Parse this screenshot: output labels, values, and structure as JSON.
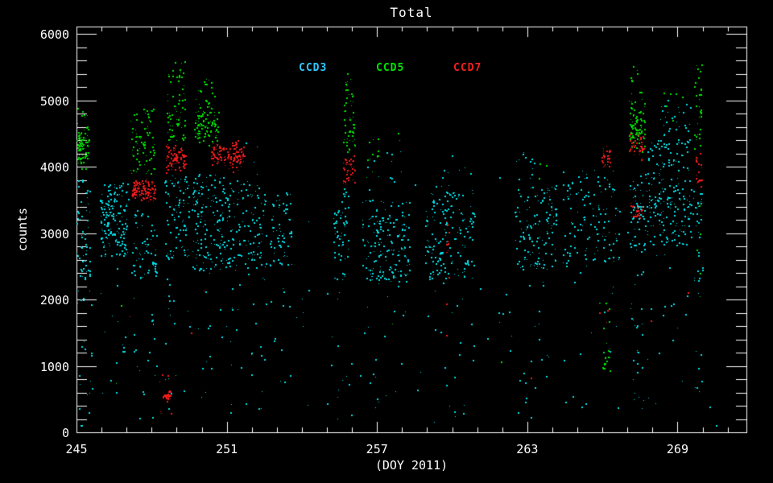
{
  "window": {
    "background": "#000000",
    "axis_color": "#ffffff"
  },
  "chart_data": {
    "type": "scatter",
    "title": "Total",
    "xlabel": "(DOY 2011)",
    "ylabel": "counts",
    "xlim": [
      245,
      271.75
    ],
    "ylim": [
      0,
      6115
    ],
    "x_major_ticks": [
      245,
      251,
      257,
      263,
      269
    ],
    "x_minor_step": 1,
    "y_major_ticks": [
      0,
      1000,
      2000,
      3000,
      4000,
      5000,
      6000
    ],
    "y_minor_step": 200,
    "grid": false,
    "legend_position": "top-center-inside",
    "legend": [
      {
        "label": "CCD3",
        "color": "#2fc8ff"
      },
      {
        "label": "CCD5",
        "color": "#00e400"
      },
      {
        "label": "CCD7",
        "color": "#f02020"
      }
    ],
    "series": [
      {
        "name": "CCD3",
        "color": "#00e0e8"
      },
      {
        "name": "CCD5",
        "color": "#00e400"
      },
      {
        "name": "CCD7",
        "color": "#f21c1c"
      }
    ],
    "point_clusters": [
      {
        "s": "CCD5",
        "doy": [
          245.0,
          245.5
        ],
        "counts": [
          3900,
          4750
        ],
        "n": 85,
        "dist": "g"
      },
      {
        "s": "CCD5",
        "doy": [
          245.0,
          245.5
        ],
        "counts": [
          4750,
          4950
        ],
        "n": 6,
        "dist": "u"
      },
      {
        "s": "CCD3",
        "doy": [
          245.0,
          245.55
        ],
        "counts": [
          2300,
          3850
        ],
        "n": 55,
        "dist": "u"
      },
      {
        "s": "CCD3",
        "doy": [
          245.0,
          245.6
        ],
        "counts": [
          100,
          2300
        ],
        "n": 22,
        "dist": "u"
      },
      {
        "s": "CCD3",
        "doy": [
          245.9,
          247.05
        ],
        "counts": [
          2650,
          3800
        ],
        "n": 115,
        "dist": "u"
      },
      {
        "s": "CCD3",
        "doy": [
          245.95,
          247.0
        ],
        "counts": [
          2800,
          3500
        ],
        "n": 55,
        "dist": "u"
      },
      {
        "s": "CCD3",
        "doy": [
          245.9,
          247.0
        ],
        "counts": [
          300,
          2650
        ],
        "n": 14,
        "dist": "u"
      },
      {
        "s": "CCD5",
        "doy": [
          247.15,
          248.1
        ],
        "counts": [
          3900,
          4880
        ],
        "n": 78,
        "dist": "u"
      },
      {
        "s": "CCD7",
        "doy": [
          247.2,
          248.15
        ],
        "counts": [
          3470,
          3860
        ],
        "n": 130,
        "dist": "g"
      },
      {
        "s": "CCD3",
        "doy": [
          247.2,
          248.2
        ],
        "counts": [
          2300,
          3470
        ],
        "n": 65,
        "dist": "u"
      },
      {
        "s": "CCD3",
        "doy": [
          247.2,
          248.2
        ],
        "counts": [
          200,
          2300
        ],
        "n": 18,
        "dist": "u"
      },
      {
        "s": "CCD7",
        "doy": [
          248.4,
          248.75
        ],
        "counts": [
          450,
          660
        ],
        "n": 30,
        "dist": "g"
      },
      {
        "s": "CCD7",
        "doy": [
          248.3,
          248.8
        ],
        "counts": [
          150,
          1000
        ],
        "n": 6,
        "dist": "u"
      },
      {
        "s": "CCD5",
        "doy": [
          248.6,
          249.4
        ],
        "counts": [
          4400,
          5600
        ],
        "n": 70,
        "dist": "u"
      },
      {
        "s": "CCD7",
        "doy": [
          248.55,
          249.35
        ],
        "counts": [
          3880,
          4400
        ],
        "n": 85,
        "dist": "g"
      },
      {
        "s": "CCD3",
        "doy": [
          248.5,
          249.5
        ],
        "counts": [
          2600,
          3880
        ],
        "n": 90,
        "dist": "u"
      },
      {
        "s": "CCD3",
        "doy": [
          248.5,
          249.5
        ],
        "counts": [
          300,
          2600
        ],
        "n": 16,
        "dist": "u"
      },
      {
        "s": "CCD5",
        "doy": [
          249.7,
          250.65
        ],
        "counts": [
          4300,
          5050
        ],
        "n": 110,
        "dist": "g"
      },
      {
        "s": "CCD5",
        "doy": [
          249.85,
          250.5
        ],
        "counts": [
          5050,
          5330
        ],
        "n": 12,
        "dist": "u"
      },
      {
        "s": "CCD7",
        "doy": [
          250.35,
          250.95
        ],
        "counts": [
          4000,
          4400
        ],
        "n": 55,
        "dist": "g"
      },
      {
        "s": "CCD3",
        "doy": [
          249.6,
          251.05
        ],
        "counts": [
          2450,
          3900
        ],
        "n": 170,
        "dist": "u"
      },
      {
        "s": "CCD3",
        "doy": [
          249.7,
          251.0
        ],
        "counts": [
          400,
          2450
        ],
        "n": 12,
        "dist": "u"
      },
      {
        "s": "CCD7",
        "doy": [
          251.0,
          251.7
        ],
        "counts": [
          3890,
          4480
        ],
        "n": 70,
        "dist": "g"
      },
      {
        "s": "CCD3",
        "doy": [
          251.05,
          252.55
        ],
        "counts": [
          2450,
          3800
        ],
        "n": 115,
        "dist": "u"
      },
      {
        "s": "CCD3",
        "doy": [
          251.1,
          252.5
        ],
        "counts": [
          150,
          2450
        ],
        "n": 20,
        "dist": "u"
      },
      {
        "s": "CCD3",
        "doy": [
          251.3,
          252.4
        ],
        "counts": [
          3800,
          4400
        ],
        "n": 5,
        "dist": "u"
      },
      {
        "s": "CCD3",
        "doy": [
          252.7,
          253.6
        ],
        "counts": [
          2500,
          3620
        ],
        "n": 70,
        "dist": "u"
      },
      {
        "s": "CCD3",
        "doy": [
          252.7,
          253.6
        ],
        "counts": [
          300,
          2500
        ],
        "n": 10,
        "dist": "u"
      },
      {
        "s": "CCD3",
        "doy": [
          253.6,
          255.2
        ],
        "counts": [
          200,
          3400
        ],
        "n": 8,
        "dist": "u"
      },
      {
        "s": "CCD3",
        "doy": [
          255.25,
          255.85
        ],
        "counts": [
          2300,
          3680
        ],
        "n": 60,
        "dist": "u"
      },
      {
        "s": "CCD5",
        "doy": [
          255.65,
          256.1
        ],
        "counts": [
          4200,
          5000
        ],
        "n": 38,
        "dist": "u"
      },
      {
        "s": "CCD5",
        "doy": [
          255.7,
          256.05
        ],
        "counts": [
          5000,
          5480
        ],
        "n": 14,
        "dist": "u"
      },
      {
        "s": "CCD7",
        "doy": [
          255.65,
          256.1
        ],
        "counts": [
          3680,
          4250
        ],
        "n": 42,
        "dist": "g"
      },
      {
        "s": "CCD3",
        "doy": [
          255.3,
          256.1
        ],
        "counts": [
          200,
          2300
        ],
        "n": 10,
        "dist": "u"
      },
      {
        "s": "CCD3",
        "doy": [
          256.4,
          258.3
        ],
        "counts": [
          2280,
          3520
        ],
        "n": 185,
        "dist": "u"
      },
      {
        "s": "CCD3",
        "doy": [
          256.5,
          258.2
        ],
        "counts": [
          3520,
          4250
        ],
        "n": 12,
        "dist": "u"
      },
      {
        "s": "CCD5",
        "doy": [
          256.55,
          257.1
        ],
        "counts": [
          3750,
          4550
        ],
        "n": 11,
        "dist": "u"
      },
      {
        "s": "CCD5",
        "doy": [
          257.8,
          258.0
        ],
        "counts": [
          4400,
          4600
        ],
        "n": 2,
        "dist": "u"
      },
      {
        "s": "CCD3",
        "doy": [
          256.4,
          258.3
        ],
        "counts": [
          200,
          2280
        ],
        "n": 16,
        "dist": "u"
      },
      {
        "s": "CCD3",
        "doy": [
          258.9,
          260.9
        ],
        "counts": [
          2320,
          3620
        ],
        "n": 165,
        "dist": "u"
      },
      {
        "s": "CCD3",
        "doy": [
          259.0,
          260.8
        ],
        "counts": [
          3620,
          4020
        ],
        "n": 10,
        "dist": "u"
      },
      {
        "s": "CCD7",
        "doy": [
          259.75,
          259.85
        ],
        "counts": [
          2700,
          3280
        ],
        "n": 12,
        "dist": "u"
      },
      {
        "s": "CCD7",
        "doy": [
          259.7,
          259.9
        ],
        "counts": [
          1300,
          2400
        ],
        "n": 3,
        "dist": "u"
      },
      {
        "s": "CCD3",
        "doy": [
          258.9,
          260.9
        ],
        "counts": [
          150,
          2320
        ],
        "n": 16,
        "dist": "u"
      },
      {
        "s": "CCD3",
        "doy": [
          261.0,
          262.45
        ],
        "counts": [
          200,
          3000
        ],
        "n": 7,
        "dist": "u"
      },
      {
        "s": "CCD3",
        "doy": [
          262.5,
          264.15
        ],
        "counts": [
          2450,
          3720
        ],
        "n": 135,
        "dist": "u"
      },
      {
        "s": "CCD3",
        "doy": [
          262.55,
          263.3
        ],
        "counts": [
          3800,
          4260
        ],
        "n": 12,
        "dist": "u"
      },
      {
        "s": "CCD5",
        "doy": [
          263.3,
          264.0
        ],
        "counts": [
          3800,
          4100
        ],
        "n": 3,
        "dist": "u"
      },
      {
        "s": "CCD3",
        "doy": [
          262.5,
          264.1
        ],
        "counts": [
          200,
          2450
        ],
        "n": 15,
        "dist": "u"
      },
      {
        "s": "CCD3",
        "doy": [
          264.4,
          266.7
        ],
        "counts": [
          2500,
          3960
        ],
        "n": 130,
        "dist": "u"
      },
      {
        "s": "CCD7",
        "doy": [
          265.95,
          266.3
        ],
        "counts": [
          3960,
          4360
        ],
        "n": 30,
        "dist": "g"
      },
      {
        "s": "CCD5",
        "doy": [
          266.0,
          266.3
        ],
        "counts": [
          760,
          1420
        ],
        "n": 18,
        "dist": "g"
      },
      {
        "s": "CCD5",
        "doy": [
          265.9,
          266.35
        ],
        "counts": [
          1500,
          2400
        ],
        "n": 5,
        "dist": "u"
      },
      {
        "s": "CCD7",
        "doy": [
          264.6,
          266.5
        ],
        "counts": [
          1500,
          2600
        ],
        "n": 3,
        "dist": "u"
      },
      {
        "s": "CCD3",
        "doy": [
          264.5,
          266.6
        ],
        "counts": [
          200,
          2500
        ],
        "n": 14,
        "dist": "u"
      },
      {
        "s": "CCD5",
        "doy": [
          267.05,
          267.7
        ],
        "counts": [
          4150,
          5100
        ],
        "n": 75,
        "dist": "g"
      },
      {
        "s": "CCD5",
        "doy": [
          267.1,
          267.6
        ],
        "counts": [
          5100,
          5600
        ],
        "n": 10,
        "dist": "u"
      },
      {
        "s": "CCD7",
        "doy": [
          267.05,
          267.65
        ],
        "counts": [
          4050,
          4560
        ],
        "n": 38,
        "dist": "g"
      },
      {
        "s": "CCD7",
        "doy": [
          267.1,
          267.6
        ],
        "counts": [
          3160,
          3520
        ],
        "n": 34,
        "dist": "g"
      },
      {
        "s": "CCD3",
        "doy": [
          267.0,
          267.75
        ],
        "counts": [
          2750,
          3950
        ],
        "n": 55,
        "dist": "u"
      },
      {
        "s": "CCD3",
        "doy": [
          267.1,
          267.65
        ],
        "counts": [
          300,
          2750
        ],
        "n": 28,
        "dist": "u"
      },
      {
        "s": "CCD3",
        "doy": [
          267.75,
          269.55
        ],
        "counts": [
          2820,
          4420
        ],
        "n": 210,
        "dist": "u"
      },
      {
        "s": "CCD3",
        "doy": [
          268.1,
          269.5
        ],
        "counts": [
          4420,
          5020
        ],
        "n": 28,
        "dist": "u"
      },
      {
        "s": "CCD5",
        "doy": [
          268.3,
          269.4
        ],
        "counts": [
          4500,
          5200
        ],
        "n": 6,
        "dist": "u"
      },
      {
        "s": "CCD3",
        "doy": [
          267.8,
          269.5
        ],
        "counts": [
          300,
          2820
        ],
        "n": 12,
        "dist": "u"
      },
      {
        "s": "CCD5",
        "doy": [
          269.65,
          269.95
        ],
        "counts": [
          4250,
          5600
        ],
        "n": 32,
        "dist": "u"
      },
      {
        "s": "CCD7",
        "doy": [
          269.7,
          269.95
        ],
        "counts": [
          3700,
          4290
        ],
        "n": 20,
        "dist": "u"
      },
      {
        "s": "CCD3",
        "doy": [
          269.6,
          270.0
        ],
        "counts": [
          2260,
          3650
        ],
        "n": 30,
        "dist": "u"
      },
      {
        "s": "CCD5",
        "doy": [
          269.7,
          269.95
        ],
        "counts": [
          1500,
          4250
        ],
        "n": 6,
        "dist": "u"
      },
      {
        "s": "CCD3",
        "doy": [
          269.65,
          269.95
        ],
        "counts": [
          300,
          2260
        ],
        "n": 8,
        "dist": "u"
      },
      {
        "s": "CCD3",
        "doy": [
          245.1,
          271.3
        ],
        "counts": [
          100,
          2200
        ],
        "n": 45,
        "dist": "u"
      },
      {
        "s": "CCD5",
        "doy": [
          246.0,
          271.0
        ],
        "counts": [
          150,
          2200
        ],
        "n": 7,
        "dist": "u"
      },
      {
        "s": "CCD7",
        "doy": [
          246.0,
          271.0
        ],
        "counts": [
          150,
          2200
        ],
        "n": 6,
        "dist": "u"
      },
      {
        "s": "CCD3",
        "doy": [
          253.0,
          262.0
        ],
        "counts": [
          3500,
          4300
        ],
        "n": 6,
        "dist": "u"
      }
    ]
  }
}
